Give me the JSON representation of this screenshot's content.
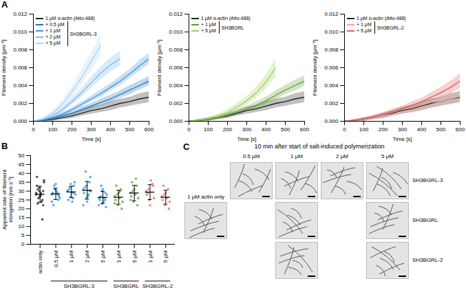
{
  "chart_data": [
    {
      "type": "line",
      "label": "A",
      "x_label": "Time [s]",
      "y_label": "Filament density [µm⁻²]",
      "xlim": [
        0,
        600
      ],
      "xticks": [
        0,
        100,
        200,
        300,
        400,
        500,
        600
      ],
      "ylim": [
        0,
        0.012
      ],
      "yticks": [
        {
          "value": 0,
          "label": "0.000"
        },
        {
          "value": 0.002,
          "label": "0.002"
        },
        {
          "value": 0.004,
          "label": "0.004"
        },
        {
          "value": 0.006,
          "label": "0.006"
        },
        {
          "value": 0.008,
          "label": "0.008"
        },
        {
          "value": 0.01,
          "label": "0.010"
        },
        {
          "value": 0.012,
          "label": "0.012"
        }
      ],
      "legend": "top-left",
      "legend_title": "SH3BGRL-3",
      "x": [
        0,
        50,
        100,
        150,
        200,
        250,
        300,
        350,
        400,
        450,
        500,
        550,
        600
      ],
      "series": [
        {
          "name": "1 µM α-actin (Atto-488)",
          "color": "#222222",
          "values": [
            0,
            0.0001,
            0.0002,
            0.0004,
            0.0006,
            0.0009,
            0.0012,
            0.0014,
            0.0017,
            0.002,
            0.0022,
            0.0025,
            0.0027
          ],
          "error": [
            0,
            0.0001,
            0.0002,
            0.0002,
            0.0003,
            0.0003,
            0.0004,
            0.0004,
            0.0005,
            0.0005,
            0.0005,
            0.0006,
            0.0006
          ]
        },
        {
          "name": "+ 0.5 µM",
          "color": "#1f6fbf",
          "values": [
            0,
            0.0001,
            0.0003,
            0.0006,
            0.0009,
            0.0013,
            0.0017,
            0.0021,
            0.0025,
            0.003,
            0.0035,
            0.004,
            0.0045
          ],
          "error": [
            0,
            0.0001,
            0.0001,
            0.0002,
            0.0002,
            0.0003,
            0.0003,
            0.0004,
            0.0004,
            0.0004,
            0.0005,
            0.0005,
            0.0005
          ]
        },
        {
          "name": "+ 1 µM",
          "color": "#3d93dc",
          "values": [
            0,
            0.0001,
            0.0004,
            0.0008,
            0.0013,
            0.0019,
            0.0025,
            0.0031,
            0.0038,
            0.0045,
            0.0053,
            0.0062,
            0.007
          ],
          "error": [
            0,
            0.0001,
            0.0001,
            0.0002,
            0.0002,
            0.0003,
            0.0003,
            0.0004,
            0.0004,
            0.0005,
            0.0005,
            0.0006,
            0.0006
          ]
        },
        {
          "name": "+ 2 µM",
          "color": "#78b8ec",
          "values": [
            0,
            0.0002,
            0.0006,
            0.0013,
            0.0022,
            0.0032,
            0.0043,
            0.0054,
            0.0063,
            0.007,
            null,
            null,
            null
          ],
          "error": [
            0,
            0.0001,
            0.0002,
            0.0003,
            0.0004,
            0.0005,
            0.0006,
            0.0007,
            0.0008,
            0.0008,
            null,
            null,
            null
          ]
        },
        {
          "name": "+ 5 µM",
          "color": "#a8d5f7",
          "values": [
            0,
            0.0003,
            0.0009,
            0.0019,
            0.0033,
            0.0049,
            0.0067,
            0.0085,
            null,
            null,
            null,
            null,
            null
          ],
          "error": [
            0,
            0.0001,
            0.0003,
            0.0004,
            0.0006,
            0.0008,
            0.001,
            0.0012,
            null,
            null,
            null,
            null,
            null
          ]
        }
      ]
    },
    {
      "type": "line",
      "x_label": "Time [s]",
      "y_label": "Filament density [µm⁻²]",
      "xlim": [
        0,
        600
      ],
      "xticks": [
        0,
        100,
        200,
        300,
        400,
        500,
        600
      ],
      "ylim": [
        0,
        0.012
      ],
      "yticks": [
        {
          "value": 0,
          "label": "0.000"
        },
        {
          "value": 0.002,
          "label": "0.002"
        },
        {
          "value": 0.004,
          "label": "0.004"
        },
        {
          "value": 0.006,
          "label": "0.006"
        },
        {
          "value": 0.008,
          "label": "0.008"
        },
        {
          "value": 0.01,
          "label": "0.010"
        },
        {
          "value": 0.012,
          "label": "0.012"
        }
      ],
      "legend": "top-left",
      "legend_title": "SH3BGRL",
      "x": [
        0,
        50,
        100,
        150,
        200,
        250,
        300,
        350,
        400,
        450,
        500,
        550,
        600
      ],
      "series": [
        {
          "name": "1 µM α-actin (Atto-488)",
          "color": "#222222",
          "values": [
            0,
            0.0001,
            0.0002,
            0.0004,
            0.0006,
            0.0009,
            0.0012,
            0.0014,
            0.0017,
            0.002,
            0.0022,
            0.0025,
            0.0027
          ],
          "error": [
            0,
            0.0001,
            0.0002,
            0.0002,
            0.0003,
            0.0003,
            0.0004,
            0.0004,
            0.0005,
            0.0005,
            0.0005,
            0.0006,
            0.0006
          ]
        },
        {
          "name": "+ 1 µM",
          "color": "#5a9e2f",
          "values": [
            0,
            0.0001,
            0.0002,
            0.0004,
            0.0007,
            0.001,
            0.0014,
            0.0018,
            0.0023,
            0.0029,
            0.0035,
            0.004,
            0.0045
          ],
          "error": [
            0,
            0.0001,
            0.0001,
            0.0002,
            0.0002,
            0.0003,
            0.0003,
            0.0004,
            0.0004,
            0.0005,
            0.0005,
            0.0006,
            0.0006
          ]
        },
        {
          "name": "+ 5 µM",
          "color": "#9ccf5a",
          "values": [
            0,
            0.0001,
            0.0003,
            0.0006,
            0.001,
            0.0016,
            0.0023,
            0.0032,
            0.0044,
            0.006,
            null,
            null,
            null
          ],
          "error": [
            0,
            0.0001,
            0.0001,
            0.0002,
            0.0003,
            0.0004,
            0.0005,
            0.0006,
            0.0008,
            0.001,
            null,
            null,
            null
          ]
        }
      ]
    },
    {
      "type": "line",
      "x_label": "Time [s]",
      "y_label": "Filament density [µm⁻²]",
      "xlim": [
        0,
        600
      ],
      "xticks": [
        0,
        100,
        200,
        300,
        400,
        500,
        600
      ],
      "ylim": [
        0,
        0.012
      ],
      "yticks": [
        {
          "value": 0,
          "label": "0.000"
        },
        {
          "value": 0.002,
          "label": "0.002"
        },
        {
          "value": 0.004,
          "label": "0.004"
        },
        {
          "value": 0.006,
          "label": "0.006"
        },
        {
          "value": 0.008,
          "label": "0.008"
        },
        {
          "value": 0.01,
          "label": "0.010"
        },
        {
          "value": 0.012,
          "label": "0.012"
        }
      ],
      "legend": "top-left",
      "legend_title": "SH3BGRL-2",
      "x": [
        0,
        50,
        100,
        150,
        200,
        250,
        300,
        350,
        400,
        450,
        500,
        550,
        600
      ],
      "series": [
        {
          "name": "1 µM α-actin (Atto-488)",
          "color": "#222222",
          "values": [
            0,
            0.0001,
            0.0002,
            0.0004,
            0.0006,
            0.0009,
            0.0012,
            0.0014,
            0.0017,
            0.002,
            0.0022,
            0.0025,
            0.0027
          ],
          "error": [
            0,
            0.0001,
            0.0002,
            0.0002,
            0.0003,
            0.0003,
            0.0004,
            0.0004,
            0.0005,
            0.0005,
            0.0005,
            0.0006,
            0.0006
          ]
        },
        {
          "name": "+ 1 µM",
          "color": "#f2a7a7",
          "values": [
            0,
            0.0001,
            0.0002,
            0.0004,
            0.0006,
            0.0008,
            0.0011,
            0.0013,
            0.0016,
            0.0019,
            0.0022,
            0.0025,
            0.0028
          ],
          "error": [
            0,
            0.0001,
            0.0001,
            0.0002,
            0.0002,
            0.0003,
            0.0003,
            0.0004,
            0.0004,
            0.0005,
            0.0005,
            0.0006,
            0.0006
          ]
        },
        {
          "name": "+ 5 µM",
          "color": "#e05a5a",
          "values": [
            0,
            0.0001,
            0.0003,
            0.0005,
            0.0008,
            0.0011,
            0.0014,
            0.0018,
            0.0022,
            0.0027,
            0.0032,
            0.0038,
            0.0045
          ],
          "error": [
            0,
            0.0001,
            0.0001,
            0.0002,
            0.0002,
            0.0003,
            0.0003,
            0.0004,
            0.0004,
            0.0005,
            0.0006,
            0.0007,
            0.0008
          ]
        }
      ]
    },
    {
      "type": "scatter",
      "label": "B",
      "y_label": "Apparent rate of filament elongation [nm s⁻¹]",
      "ylim": [
        0,
        50
      ],
      "yticks": [
        0,
        5,
        10,
        15,
        20,
        25,
        30,
        35,
        40,
        45,
        50
      ],
      "grid": false,
      "series": [
        {
          "name": null,
          "color": "#333333",
          "categories": [
            "actin only"
          ],
          "values": [
            [
              28,
              30,
              25,
              33,
              27,
              22,
              31,
              29,
              35,
              26,
              24,
              29,
              32,
              14,
              38,
              27,
              30,
              23,
              28,
              36
            ]
          ],
          "mean": [
            28.2
          ],
          "sd": [
            4.5
          ]
        },
        {
          "name": "SH3BGRL-3",
          "color": "#3a9ad9",
          "categories": [
            "0.5 µM",
            "1 µM",
            "2 µM",
            "5 µM"
          ],
          "values": [
            [
              28,
              31,
              25,
              29,
              34,
              27,
              22,
              30,
              26,
              33,
              29,
              24,
              31,
              28
            ],
            [
              30,
              27,
              33,
              25,
              29,
              35,
              31,
              24,
              28,
              32,
              26,
              30,
              34,
              29
            ],
            [
              31,
              26,
              35,
              29,
              24,
              38,
              32,
              27,
              30,
              41,
              28,
              22,
              33,
              30
            ],
            [
              26,
              23,
              29,
              25,
              31,
              21,
              27,
              24,
              28,
              33,
              26,
              22,
              30,
              25
            ]
          ],
          "mean": [
            28.4,
            29.5,
            30.4,
            26.4
          ],
          "sd": [
            3.2,
            3.2,
            5.0,
            3.4
          ]
        },
        {
          "name": "SH3BGRL",
          "color": "#5aaa3a",
          "categories": [
            "1 µM",
            "5 µM"
          ],
          "values": [
            [
              27,
              22,
              31,
              25,
              29,
              20,
              33,
              26,
              24,
              28,
              30,
              23
            ],
            [
              29,
              24,
              33,
              27,
              31,
              22,
              35,
              28,
              26,
              30,
              37,
              25
            ]
          ],
          "mean": [
            26.5,
            28.9
          ],
          "sd": [
            3.9,
            4.3
          ]
        },
        {
          "name": "SH3BGRL-2",
          "color": "#e86b6b",
          "categories": [
            "1 µM",
            "5 µM"
          ],
          "values": [
            [
              30,
              25,
              34,
              28,
              22,
              33,
              29,
              36,
              26,
              31
            ],
            [
              27,
              22,
              31,
              25,
              29,
              20,
              33,
              26,
              24,
              28
            ]
          ],
          "mean": [
            29.4,
            26.5
          ],
          "sd": [
            4.2,
            3.9
          ]
        }
      ]
    }
  ],
  "panel_c": {
    "label": "C",
    "title": "10 min after start of salt-induced polymerization",
    "columns": [
      "0.5 µM",
      "1 µM",
      "2 µM",
      "5 µM"
    ],
    "control": "1 µM actin only",
    "rows": [
      {
        "name": "SH3BGRL-3",
        "images": [
          "0.5 µM",
          "1 µM",
          "2 µM",
          "5 µM"
        ]
      },
      {
        "name": "SH3BGRL",
        "images": [
          "1 µM",
          "5 µM"
        ]
      },
      {
        "name": "SH3BGRL-2",
        "images": [
          "1 µM",
          "5 µM"
        ]
      }
    ]
  }
}
